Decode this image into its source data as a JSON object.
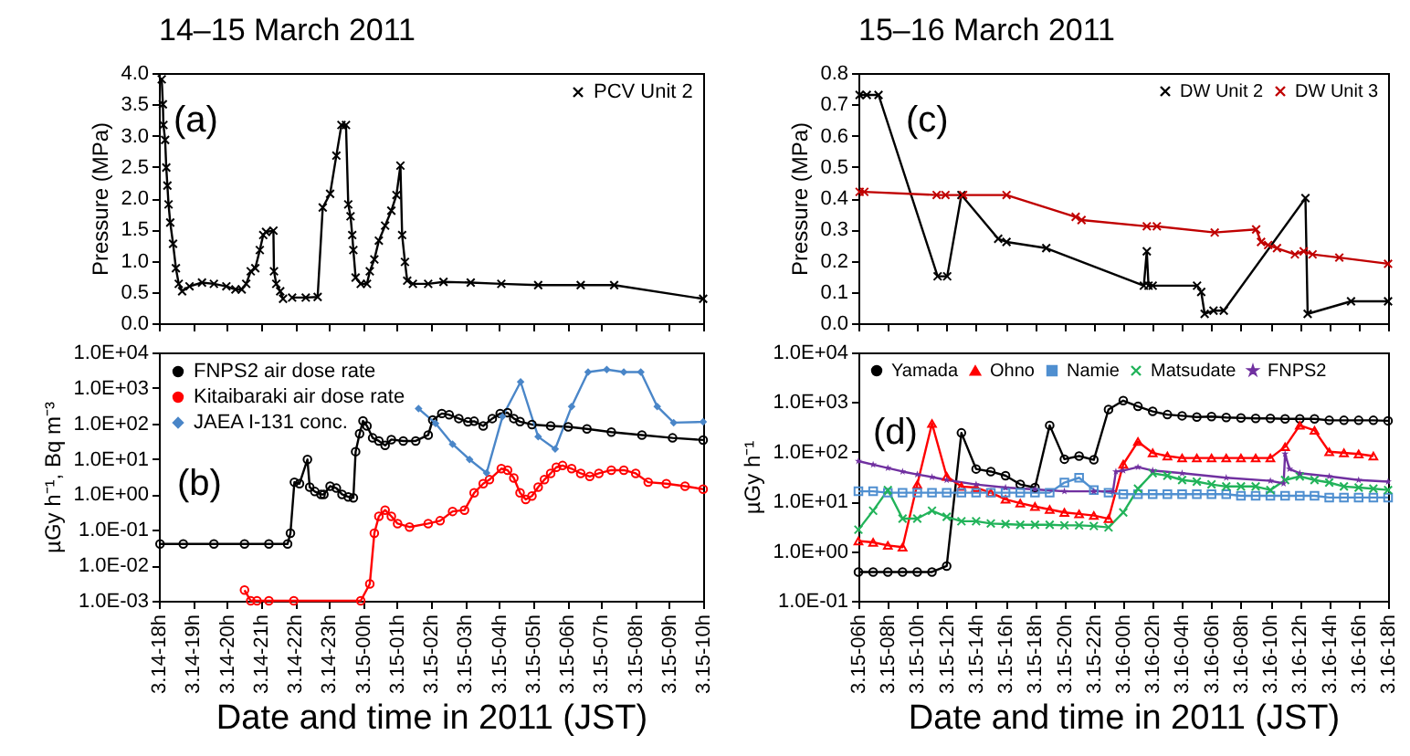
{
  "chart_data": [
    {
      "type": "line",
      "title": "14–15 March 2011",
      "ylabel": "Pressure (MPa)",
      "annotations": [
        "(a)"
      ],
      "legend": "top right",
      "marker": "cross",
      "line_style": "solid",
      "tick_labels": "y",
      "xlim": [
        "2011-03-14T18:00",
        "2011-03-15T10:00"
      ],
      "xticks": [
        "2011-03-14T18:00",
        "2011-03-14T19:00",
        "2011-03-14T20:00",
        "2011-03-14T21:00",
        "2011-03-14T22:00",
        "2011-03-14T23:00",
        "2011-03-15T00:00",
        "2011-03-15T01:00",
        "2011-03-15T02:00",
        "2011-03-15T03:00",
        "2011-03-15T04:00",
        "2011-03-15T05:00",
        "2011-03-15T06:00",
        "2011-03-15T07:00",
        "2011-03-15T08:00",
        "2011-03-15T09:00",
        "2011-03-15T10:00"
      ],
      "ylim": [
        0,
        4
      ],
      "yticks": [
        {
          "value": 0,
          "label": "0.0"
        },
        0.5,
        {
          "value": 1,
          "label": "1.0"
        },
        1.5,
        {
          "value": 2,
          "label": "2.0"
        },
        2.5,
        {
          "value": 3,
          "label": "3.0"
        },
        3.5,
        {
          "value": 4,
          "label": "4.0"
        }
      ],
      "series": [
        {
          "name": "PCV Unit 2",
          "color": "#000000",
          "x": [
            "2011-03-14T18:05",
            "2011-03-14T18:07",
            "2011-03-14T18:08",
            "2011-03-14T18:11",
            "2011-03-14T18:13",
            "2011-03-14T18:15",
            "2011-03-14T18:17",
            "2011-03-14T18:20",
            "2011-03-14T18:25",
            "2011-03-14T18:30",
            "2011-03-14T18:35",
            "2011-03-14T18:41",
            "2011-03-14T18:54",
            "2011-03-14T19:16",
            "2011-03-14T19:37",
            "2011-03-14T19:59",
            "2011-03-14T20:15",
            "2011-03-14T20:26",
            "2011-03-14T20:34",
            "2011-03-14T20:42",
            "2011-03-14T20:50",
            "2011-03-14T20:58",
            "2011-03-14T21:04",
            "2011-03-14T21:09",
            "2011-03-14T21:22",
            "2011-03-14T21:23",
            "2011-03-14T21:27",
            "2011-03-14T21:34",
            "2011-03-14T21:39",
            "2011-03-14T21:48",
            "2011-03-14T21:55",
            "2011-03-14T22:19",
            "2011-03-14T22:40",
            "2011-03-14T22:49",
            "2011-03-14T23:02",
            "2011-03-14T23:13",
            "2011-03-14T23:22",
            "2011-03-14T23:30",
            "2011-03-14T23:34",
            "2011-03-14T23:38",
            "2011-03-14T23:41",
            "2011-03-14T23:43",
            "2011-03-14T23:47",
            "2011-03-14T23:56",
            "2011-03-15T00:07",
            "2011-03-15T00:12",
            "2011-03-15T00:20",
            "2011-03-15T00:28",
            "2011-03-15T00:39",
            "2011-03-15T00:50",
            "2011-03-15T00:59",
            "2011-03-15T01:06",
            "2011-03-15T01:09",
            "2011-03-15T01:14",
            "2011-03-15T01:18",
            "2011-03-15T01:28",
            "2011-03-15T01:55",
            "2011-03-15T02:22",
            "2011-03-15T03:10",
            "2011-03-15T04:04",
            "2011-03-15T05:09",
            "2011-03-15T06:24",
            "2011-03-15T07:23",
            "2011-03-15T10:00"
          ],
          "values": [
            3.9,
            3.5,
            3.17,
            2.93,
            2.49,
            2.2,
            1.9,
            1.61,
            1.27,
            0.88,
            0.63,
            0.51,
            0.59,
            0.65,
            0.63,
            0.59,
            0.54,
            0.54,
            0.63,
            0.83,
            0.88,
            1.17,
            1.41,
            1.46,
            1.48,
            0.83,
            0.63,
            0.51,
            0.39,
            null,
            0.41,
            0.41,
            0.42,
            1.85,
            2.07,
            2.68,
            3.17,
            3.17,
            1.9,
            1.71,
            1.41,
            1.17,
            0.73,
            0.63,
            0.63,
            0.83,
            1.02,
            1.32,
            1.56,
            1.8,
            2.05,
            2.52,
            1.41,
            0.98,
            0.68,
            0.63,
            0.63,
            0.66,
            0.65,
            0.63,
            0.61,
            0.61,
            0.61,
            0.39
          ]
        }
      ]
    },
    {
      "type": "line",
      "xlabel": "Date and time in 2011 (JST)",
      "ylabel": "µGy h⁻¹, Bq m⁻³",
      "annotations": [
        "(b)"
      ],
      "legend": "top left",
      "log": true,
      "line_style": "solid",
      "xlim": [
        "2011-03-14T18:00",
        "2011-03-15T10:00"
      ],
      "xticks": [
        {
          "value": "2011-03-14T18:00",
          "label": "3.14-18h"
        },
        {
          "value": "2011-03-14T19:00",
          "label": "3.14-19h"
        },
        {
          "value": "2011-03-14T20:00",
          "label": "3.14-20h"
        },
        {
          "value": "2011-03-14T21:00",
          "label": "3.14-21h"
        },
        {
          "value": "2011-03-14T22:00",
          "label": "3.14-22h"
        },
        {
          "value": "2011-03-14T23:00",
          "label": "3.14-23h"
        },
        {
          "value": "2011-03-15T00:00",
          "label": "3.15-00h"
        },
        {
          "value": "2011-03-15T01:00",
          "label": "3.15-01h"
        },
        {
          "value": "2011-03-15T02:00",
          "label": "3.15-02h"
        },
        {
          "value": "2011-03-15T03:00",
          "label": "3.15-03h"
        },
        {
          "value": "2011-03-15T04:00",
          "label": "3.15-04h"
        },
        {
          "value": "2011-03-15T05:00",
          "label": "3.15-05h"
        },
        {
          "value": "2011-03-15T06:00",
          "label": "3.15-06h"
        },
        {
          "value": "2011-03-15T07:00",
          "label": "3.15-07h"
        },
        {
          "value": "2011-03-15T08:00",
          "label": "3.15-08h"
        },
        {
          "value": "2011-03-15T09:00",
          "label": "3.15-09h"
        },
        {
          "value": "2011-03-15T10:00",
          "label": "3.15-10h"
        }
      ],
      "ylim": [
        0.001,
        10000
      ],
      "yticks": [
        {
          "value": 0.001,
          "label": "1.0E-03"
        },
        {
          "value": 0.01,
          "label": "1.0E-02"
        },
        {
          "value": 0.1,
          "label": "1.0E-01"
        },
        {
          "value": 1,
          "label": "1.0E+00"
        },
        {
          "value": 10,
          "label": "1.0E+01"
        },
        {
          "value": 100,
          "label": "1.0E+02"
        },
        {
          "value": 1000,
          "label": "1.0E+03"
        },
        {
          "value": 10000,
          "label": "1.0E+04"
        }
      ],
      "series": [
        {
          "name": "FNPS2 air dose rate",
          "color": "#000000",
          "marker": "circle",
          "x": [
            "2011-03-14T18:02",
            "2011-03-14T18:43",
            "2011-03-14T19:37",
            "2011-03-14T20:31",
            "2011-03-14T21:14",
            "2011-03-14T21:47",
            "2011-03-14T21:52",
            "2011-03-14T21:59",
            "2011-03-14T22:08",
            "2011-03-14T22:22",
            "2011-03-14T22:26",
            "2011-03-14T22:35",
            "2011-03-14T22:46",
            "2011-03-14T22:51",
            "2011-03-14T23:02",
            "2011-03-14T23:13",
            "2011-03-14T23:23",
            "2011-03-14T23:34",
            "2011-03-14T23:43",
            "2011-03-14T23:47",
            "2011-03-14T23:54",
            "2011-03-15T00:00",
            "2011-03-15T00:07",
            "2011-03-15T00:17",
            "2011-03-15T00:28",
            "2011-03-15T00:39",
            "2011-03-15T00:50",
            "2011-03-15T01:11",
            "2011-03-15T01:33",
            "2011-03-15T01:55",
            "2011-03-15T02:03",
            "2011-03-15T02:19",
            "2011-03-15T02:32",
            "2011-03-15T02:49",
            "2011-03-15T03:05",
            "2011-03-15T03:16",
            "2011-03-15T03:32",
            "2011-03-15T03:48",
            "2011-03-15T04:02",
            "2011-03-15T04:15",
            "2011-03-15T04:26",
            "2011-03-15T04:37",
            "2011-03-15T04:58",
            "2011-03-15T05:31",
            "2011-03-15T06:02",
            "2011-03-15T06:35",
            "2011-03-15T07:18",
            "2011-03-15T08:12",
            "2011-03-15T09:06",
            "2011-03-15T10:00"
          ],
          "values": [
            0.04,
            0.04,
            0.04,
            0.04,
            0.04,
            0.04,
            0.08,
            2.2,
            2.0,
            9.6,
            1.6,
            1.2,
            1.0,
            1.0,
            1.7,
            1.5,
            1.0,
            0.85,
            0.8,
            16,
            51,
            117,
            85,
            39,
            32,
            24,
            35,
            32,
            32,
            47,
            125,
            190,
            175,
            137,
            110,
            115,
            85,
            137,
            190,
            200,
            137,
            112,
            93,
            85,
            80,
            70,
            57,
            47,
            39,
            34
          ]
        },
        {
          "name": "Kitaibaraki air dose rate",
          "color": "#ff0000",
          "marker": "circle",
          "x": [
            "2011-03-14T20:31",
            "2011-03-14T20:42",
            "2011-03-14T20:53",
            "2011-03-14T21:14",
            "2011-03-14T21:58",
            "2011-03-14T23:56",
            "2011-03-15T00:12",
            "2011-03-15T00:20",
            "2011-03-15T00:28",
            "2011-03-15T00:39",
            "2011-03-15T00:50",
            "2011-03-15T01:01",
            "2011-03-15T01:22",
            "2011-03-15T01:55",
            "2011-03-15T02:16",
            "2011-03-15T02:38",
            "2011-03-15T02:59",
            "2011-03-15T03:16",
            "2011-03-15T03:32",
            "2011-03-15T03:43",
            "2011-03-15T04:04",
            "2011-03-15T04:15",
            "2011-03-15T04:26",
            "2011-03-15T04:37",
            "2011-03-15T04:47",
            "2011-03-15T04:58",
            "2011-03-15T05:09",
            "2011-03-15T05:20",
            "2011-03-15T05:31",
            "2011-03-15T05:41",
            "2011-03-15T05:52",
            "2011-03-15T06:08",
            "2011-03-15T06:24",
            "2011-03-15T06:40",
            "2011-03-15T06:56",
            "2011-03-15T07:18",
            "2011-03-15T07:40",
            "2011-03-15T08:01",
            "2011-03-15T08:23",
            "2011-03-15T08:55",
            "2011-03-15T09:28",
            "2011-03-15T10:00"
          ],
          "values": [
            0.002,
            0.001,
            0.001,
            0.001,
            0.001,
            0.001,
            0.003,
            0.08,
            0.24,
            0.36,
            0.24,
            0.15,
            0.12,
            0.15,
            0.18,
            0.33,
            0.36,
            1.1,
            2.0,
            2.6,
            5.3,
            4.8,
            2.9,
            1.1,
            0.72,
            0.9,
            1.6,
            2.6,
            3.9,
            5.8,
            6.5,
            5.3,
            3.9,
            3.2,
            3.9,
            4.8,
            4.8,
            3.9,
            2.2,
            2.0,
            1.7,
            1.4
          ]
        },
        {
          "name": "JAEA I-131 conc.",
          "color": "#4a86c8",
          "marker": "diamond",
          "x": [
            "2011-03-15T01:38",
            "2011-03-15T02:08",
            "2011-03-15T02:38",
            "2011-03-15T03:08",
            "2011-03-15T03:38",
            "2011-03-15T04:06",
            "2011-03-15T04:38",
            "2011-03-15T05:09",
            "2011-03-15T05:39",
            "2011-03-15T06:08",
            "2011-03-15T06:37",
            "2011-03-15T07:10",
            "2011-03-15T07:40",
            "2011-03-15T08:10",
            "2011-03-15T08:39",
            "2011-03-15T09:08",
            "2011-03-15T10:00"
          ],
          "values": [
            260,
            100,
            26,
            9.6,
            4,
            155,
            1480,
            42,
            19,
            300,
            2800,
            3300,
            2800,
            2800,
            300,
            105,
            110
          ]
        }
      ]
    },
    {
      "type": "line",
      "title": "15–16 March 2011",
      "ylabel": "Pressure (MPa)",
      "annotations": [
        "(c)"
      ],
      "legend": "top right",
      "marker": "cross",
      "line_style": "solid",
      "tick_labels": "y",
      "xlim": [
        "2011-03-15T06:00",
        "2011-03-16T18:00"
      ],
      "xticks": [
        "2011-03-15T06:00",
        "2011-03-15T08:00",
        "2011-03-15T10:00",
        "2011-03-15T12:00",
        "2011-03-15T14:00",
        "2011-03-15T16:00",
        "2011-03-15T18:00",
        "2011-03-15T20:00",
        "2011-03-15T22:00",
        "2011-03-16T00:00",
        "2011-03-16T02:00",
        "2011-03-16T04:00",
        "2011-03-16T06:00",
        "2011-03-16T08:00",
        "2011-03-16T10:00",
        "2011-03-16T12:00",
        "2011-03-16T14:00",
        "2011-03-16T16:00",
        "2011-03-16T18:00"
      ],
      "ylim": [
        0,
        0.8
      ],
      "yticks": [
        {
          "value": 0,
          "label": "0.0"
        },
        0.1,
        0.2,
        0.3,
        0.4,
        0.5,
        0.6,
        0.7,
        0.8
      ],
      "series": [
        {
          "name": "DW Unit 2",
          "color": "#000000",
          "x": [
            "2011-03-15T06:05",
            "2011-03-15T06:34",
            "2011-03-15T07:22",
            "2011-03-15T11:23",
            "2011-03-15T12:02",
            "2011-03-15T13:00",
            "2011-03-15T15:30",
            "2011-03-15T16:04",
            "2011-03-15T18:46",
            "2011-03-16T01:24",
            "2011-03-16T01:36",
            "2011-03-16T01:43",
            "2011-03-16T02:00",
            "2011-03-16T05:01",
            "2011-03-16T05:18",
            "2011-03-16T05:32",
            "2011-03-16T06:08",
            "2011-03-16T06:50",
            "2011-03-16T12:23",
            "2011-03-16T12:32",
            "2011-03-16T15:29",
            "2011-03-16T18:00"
          ],
          "values": [
            0.73,
            0.73,
            0.73,
            0.15,
            0.15,
            0.41,
            0.27,
            0.26,
            0.24,
            0.12,
            0.23,
            0.12,
            0.12,
            0.12,
            0.1,
            0.03,
            0.04,
            0.04,
            0.4,
            0.03,
            0.07,
            0.07
          ]
        },
        {
          "name": "DW Unit 3",
          "color": "#c00000",
          "x": [
            "2011-03-15T06:05",
            "2011-03-15T06:24",
            "2011-03-15T11:19",
            "2011-03-15T11:55",
            "2011-03-15T13:07",
            "2011-03-15T16:04",
            "2011-03-15T20:46",
            "2011-03-15T21:10",
            "2011-03-16T01:36",
            "2011-03-16T02:17",
            "2011-03-16T06:13",
            "2011-03-16T09:02",
            "2011-03-16T09:22",
            "2011-03-16T09:51",
            "2011-03-16T10:27",
            "2011-03-16T11:40",
            "2011-03-16T12:16",
            "2011-03-16T12:52",
            "2011-03-16T14:41",
            "2011-03-16T18:00"
          ],
          "values": [
            0.42,
            0.42,
            0.41,
            0.41,
            0.41,
            0.41,
            0.34,
            0.33,
            0.31,
            0.31,
            0.29,
            0.3,
            0.26,
            0.25,
            0.24,
            0.22,
            0.23,
            0.22,
            0.21,
            0.19
          ]
        }
      ]
    },
    {
      "type": "line",
      "xlabel": "Date and time in 2011 (JST)",
      "ylabel": "µGy h⁻¹",
      "annotations": [
        "(d)"
      ],
      "legend": "top left",
      "log": true,
      "line_style": "solid",
      "xlim": [
        "2011-03-15T06:00",
        "2011-03-16T18:00"
      ],
      "xticks": [
        {
          "value": "2011-03-15T06:00",
          "label": "3.15-06h"
        },
        {
          "value": "2011-03-15T08:00",
          "label": "3.15-08h"
        },
        {
          "value": "2011-03-15T10:00",
          "label": "3.15-10h"
        },
        {
          "value": "2011-03-15T12:00",
          "label": "3.15-12h"
        },
        {
          "value": "2011-03-15T14:00",
          "label": "3.15-14h"
        },
        {
          "value": "2011-03-15T16:00",
          "label": "3.15-16h"
        },
        {
          "value": "2011-03-15T18:00",
          "label": "3.15-18h"
        },
        {
          "value": "2011-03-15T20:00",
          "label": "3.15-20h"
        },
        {
          "value": "2011-03-15T22:00",
          "label": "3.15-22h"
        },
        {
          "value": "2011-03-16T00:00",
          "label": "3.16-00h"
        },
        {
          "value": "2011-03-16T02:00",
          "label": "3.16-02h"
        },
        {
          "value": "2011-03-16T04:00",
          "label": "3.16-04h"
        },
        {
          "value": "2011-03-16T06:00",
          "label": "3.16-06h"
        },
        {
          "value": "2011-03-16T08:00",
          "label": "3.16-08h"
        },
        {
          "value": "2011-03-16T10:00",
          "label": "3.16-10h"
        },
        {
          "value": "2011-03-16T12:00",
          "label": "3.16-12h"
        },
        {
          "value": "2011-03-16T14:00",
          "label": "3.16-14h"
        },
        {
          "value": "2011-03-16T16:00",
          "label": "3.16-16h"
        },
        {
          "value": "2011-03-16T18:00",
          "label": "3.16-18h"
        }
      ],
      "ylim": [
        0.1,
        10000
      ],
      "yticks": [
        {
          "value": 0.1,
          "label": "1.0E-01"
        },
        {
          "value": 1,
          "label": "1.0E+00"
        },
        {
          "value": 10,
          "label": "1.0E+01"
        },
        {
          "value": 100,
          "label": "1.0E+02"
        },
        {
          "value": 1000,
          "label": "1.0E+03"
        },
        {
          "value": 10000,
          "label": "1.0E+04"
        }
      ],
      "x": [
        "2011-03-15T06:00",
        "2011-03-15T07:00",
        "2011-03-15T08:00",
        "2011-03-15T09:00",
        "2011-03-15T10:00",
        "2011-03-15T11:00",
        "2011-03-15T12:00",
        "2011-03-15T13:00",
        "2011-03-15T14:00",
        "2011-03-15T15:00",
        "2011-03-15T16:00",
        "2011-03-15T17:00",
        "2011-03-15T18:00",
        "2011-03-15T19:00",
        "2011-03-15T20:00",
        "2011-03-15T21:00",
        "2011-03-15T22:00",
        "2011-03-15T23:00",
        "2011-03-16T00:00",
        "2011-03-16T01:00",
        "2011-03-16T02:00",
        "2011-03-16T03:00",
        "2011-03-16T04:00",
        "2011-03-16T05:00",
        "2011-03-16T06:00",
        "2011-03-16T07:00",
        "2011-03-16T08:00",
        "2011-03-16T09:00",
        "2011-03-16T10:00",
        "2011-03-16T11:00",
        "2011-03-16T12:00",
        "2011-03-16T13:00",
        "2011-03-16T14:00",
        "2011-03-16T15:00",
        "2011-03-16T16:00",
        "2011-03-16T17:00",
        "2011-03-16T18:00"
      ],
      "series": [
        {
          "name": "Yamada",
          "color": "#000000",
          "marker": "circle",
          "values": [
            0.38,
            0.38,
            0.38,
            0.38,
            0.38,
            0.38,
            0.5,
            240,
            45,
            40,
            33,
            22,
            19,
            340,
            71,
            82,
            69,
            710,
            1070,
            820,
            650,
            560,
            530,
            500,
            510,
            490,
            480,
            470,
            470,
            460,
            460,
            460,
            430,
            430,
            430,
            430,
            420
          ]
        },
        {
          "name": "Ohno",
          "color": "#ff0000",
          "marker": "triangle",
          "values": [
            1.6,
            1.5,
            1.3,
            1.2,
            22,
            370,
            32,
            20,
            19,
            15,
            11,
            9.2,
            7.9,
            6.9,
            6.0,
            5.6,
            5.2,
            4.5,
            56,
            160,
            95,
            82,
            75,
            75,
            75,
            75,
            75,
            75,
            75,
            126,
            340,
            270,
            100,
            95,
            90,
            82,
            null
          ]
        },
        {
          "name": "Namie",
          "color": "#4f8fd0",
          "marker": "square",
          "values": [
            16,
            16,
            15,
            15,
            15,
            15,
            15,
            15,
            15,
            15,
            15,
            15,
            15,
            15,
            24,
            30,
            17,
            15,
            14,
            14,
            14,
            14,
            14,
            14,
            14,
            14,
            13,
            13,
            13,
            13,
            13,
            13,
            12,
            12,
            12,
            12,
            12
          ]
        },
        {
          "name": "Matsudate",
          "color": "#22b35a",
          "marker": "cross",
          "values": [
            2.7,
            6.5,
            17,
            4.5,
            4.5,
            6.5,
            4.9,
            4.0,
            4.0,
            3.6,
            3.5,
            3.4,
            3.4,
            3.4,
            3.3,
            3.3,
            3.2,
            3.0,
            6,
            18,
            37,
            33,
            27,
            25,
            22,
            20,
            20,
            20,
            17,
            27,
            32,
            27,
            24,
            20,
            19,
            18,
            17
          ]
        },
        {
          "name": "FNPS2",
          "color": "#7030a0",
          "marker": "star",
          "x": [
            "2011-03-15T06:00",
            "2011-03-15T07:00",
            "2011-03-15T08:00",
            "2011-03-15T09:00",
            "2011-03-15T10:00",
            "2011-03-15T11:00",
            "2011-03-15T12:00",
            "2011-03-15T14:00",
            "2011-03-15T16:00",
            "2011-03-15T18:00",
            "2011-03-15T20:00",
            "2011-03-15T22:00",
            "2011-03-15T23:18",
            "2011-03-15T23:30",
            "2011-03-16T00:00",
            "2011-03-16T01:00",
            "2011-03-16T02:00",
            "2011-03-16T04:00",
            "2011-03-16T07:00",
            "2011-03-16T10:00",
            "2011-03-16T10:54",
            "2011-03-16T11:00",
            "2011-03-16T11:18",
            "2011-03-16T12:00",
            "2011-03-16T14:00",
            "2011-03-16T16:00",
            "2011-03-16T18:00"
          ],
          "values": [
            65,
            55,
            47,
            40,
            35,
            31,
            27,
            22,
            19,
            17.5,
            16,
            16,
            16,
            40,
            42,
            49,
            42,
            37,
            30,
            26,
            23,
            91,
            45,
            37,
            32,
            27,
            25
          ]
        }
      ]
    }
  ]
}
